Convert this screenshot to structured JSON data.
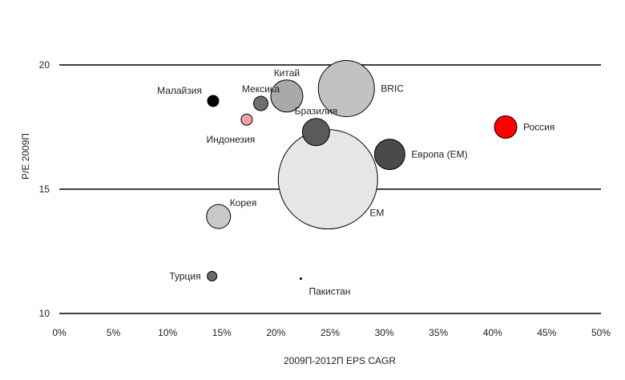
{
  "chart_data": {
    "type": "scatter",
    "variant": "bubble",
    "xlabel": "2009П-2012П EPS CAGR",
    "ylabel": "P/E 2009П",
    "xlim": [
      0,
      50
    ],
    "ylim": [
      10,
      20
    ],
    "x_ticks": [
      "0%",
      "5%",
      "10%",
      "15%",
      "20%",
      "25%",
      "30%",
      "35%",
      "40%",
      "45%",
      "50%"
    ],
    "x_tick_values": [
      0,
      5,
      10,
      15,
      20,
      25,
      30,
      35,
      40,
      45,
      50
    ],
    "y_ticks": [
      "10",
      "15",
      "20"
    ],
    "y_tick_values": [
      10,
      15,
      20
    ],
    "grid": "horizontal-at-ticks",
    "points": [
      {
        "label": "Малайзия",
        "x": 14.2,
        "y": 18.55,
        "size": 7,
        "color": "#000000",
        "label_pos": "upper-left"
      },
      {
        "label": "Мексика",
        "x": 18.6,
        "y": 18.45,
        "size": 9,
        "color": "#6e6e6e",
        "label_pos": "above"
      },
      {
        "label": "Китай",
        "x": 21.0,
        "y": 18.75,
        "size": 20,
        "color": "#a9a9a9",
        "label_pos": "above"
      },
      {
        "label": "BRIC",
        "x": 26.5,
        "y": 19.05,
        "size": 35,
        "color": "#c2c2c2",
        "label_pos": "right"
      },
      {
        "label": "Индонезия",
        "x": 17.3,
        "y": 17.8,
        "size": 7,
        "color": "#f2a3a8",
        "label_pos": "below-left"
      },
      {
        "label": "Бразилия",
        "x": 23.7,
        "y": 17.3,
        "size": 17,
        "color": "#5a5a5a",
        "label_pos": "above"
      },
      {
        "label": "Европа (EM)",
        "x": 30.5,
        "y": 16.4,
        "size": 19,
        "color": "#4a4a4a",
        "label_pos": "right"
      },
      {
        "label": "Россия",
        "x": 41.2,
        "y": 17.5,
        "size": 14,
        "color": "#ff0000",
        "label_pos": "right"
      },
      {
        "label": "EM",
        "x": 24.8,
        "y": 15.4,
        "size": 62,
        "color": "#e6e6e6",
        "label_pos": "lower-right"
      },
      {
        "label": "Корея",
        "x": 14.7,
        "y": 13.9,
        "size": 15,
        "color": "#c8c8c8",
        "label_pos": "upper-right"
      },
      {
        "label": "Турция",
        "x": 14.1,
        "y": 11.5,
        "size": 6,
        "color": "#6a6a6a",
        "label_pos": "left"
      },
      {
        "label": "Пакистан",
        "x": 22.3,
        "y": 11.4,
        "size": 1.5,
        "color": "#000000",
        "label_pos": "below-right"
      }
    ]
  }
}
